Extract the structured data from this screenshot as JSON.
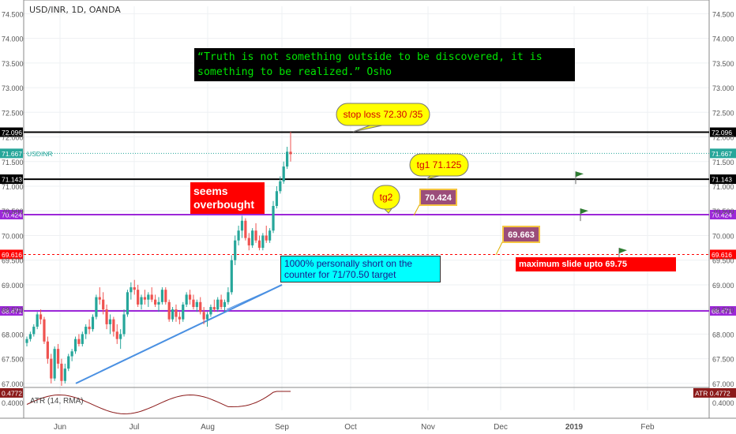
{
  "header": {
    "title": "USD/INR, 1D, OANDA"
  },
  "quote": {
    "text": "“Truth is not something outside to be discovered, it is\nsomething to be realized.” Osho"
  },
  "annotations": {
    "overbought": "seems\noverbought",
    "short_note": "1000% personally short on the counter for 71/70.50 target",
    "max_slide": "maximum slide upto 69.75",
    "stop_loss": "stop loss 72.30 /35",
    "tg1": "tg1 71.125",
    "tg2": "tg2",
    "target_70424": "70.424",
    "target_69663": "69.663"
  },
  "series_label": "USDINR",
  "atr": {
    "label": "ATR (14, RMA)",
    "right_label": "ATR",
    "value": "0.4772",
    "tick": "0.4000"
  },
  "chart_data": {
    "type": "candlestick",
    "symbol": "USD/INR",
    "interval": "1D",
    "ylim": [
      66.95,
      74.65
    ],
    "y_ticks": [
      "67.000",
      "67.500",
      "68.000",
      "68.500",
      "69.000",
      "69.500",
      "70.000",
      "70.500",
      "71.000",
      "71.500",
      "72.000",
      "72.500",
      "73.000",
      "73.500",
      "74.000",
      "74.500"
    ],
    "x_ticks": [
      "Jun",
      "Jul",
      "Aug",
      "Sep",
      "Oct",
      "Nov",
      "Dec",
      "2019",
      "Feb"
    ],
    "price_lines": [
      {
        "label": "72.096",
        "value": 72.096,
        "style": "solid",
        "color": "#000000"
      },
      {
        "label": "71.667",
        "value": 71.667,
        "style": "dotted",
        "color": "#26a69a"
      },
      {
        "label": "71.143",
        "value": 71.143,
        "style": "solid",
        "color": "#000000"
      },
      {
        "label": "70.424",
        "value": 70.424,
        "style": "solid",
        "color": "#9c27d8"
      },
      {
        "label": "69.616",
        "value": 69.616,
        "style": "dashed",
        "color": "#ff0000"
      },
      {
        "label": "68.471",
        "value": 68.471,
        "style": "solid",
        "color": "#9c27d8"
      }
    ],
    "candles": [
      [
        67.82,
        67.95,
        67.75,
        67.9
      ],
      [
        67.9,
        68.05,
        67.85,
        68.0
      ],
      [
        68.0,
        68.2,
        67.95,
        68.15
      ],
      [
        68.15,
        68.45,
        68.1,
        68.4
      ],
      [
        68.4,
        68.5,
        68.2,
        68.3
      ],
      [
        68.3,
        68.35,
        67.8,
        67.85
      ],
      [
        67.85,
        67.95,
        67.4,
        67.5
      ],
      [
        67.5,
        67.6,
        67.0,
        67.1
      ],
      [
        67.1,
        67.75,
        67.05,
        67.7
      ],
      [
        67.7,
        67.8,
        67.3,
        67.4
      ],
      [
        67.4,
        67.5,
        66.95,
        67.05
      ],
      [
        67.05,
        67.4,
        67.0,
        67.3
      ],
      [
        67.3,
        67.6,
        67.25,
        67.55
      ],
      [
        67.55,
        67.7,
        67.45,
        67.65
      ],
      [
        67.65,
        67.95,
        67.6,
        67.9
      ],
      [
        67.9,
        68.0,
        67.75,
        67.8
      ],
      [
        67.8,
        68.05,
        67.75,
        68.0
      ],
      [
        68.0,
        68.2,
        67.9,
        68.15
      ],
      [
        68.15,
        68.3,
        68.0,
        68.1
      ],
      [
        68.1,
        68.4,
        68.05,
        68.35
      ],
      [
        68.35,
        68.8,
        68.3,
        68.75
      ],
      [
        68.75,
        68.95,
        68.6,
        68.7
      ],
      [
        68.7,
        68.85,
        68.4,
        68.5
      ],
      [
        68.5,
        68.6,
        68.1,
        68.2
      ],
      [
        68.2,
        68.4,
        68.0,
        68.3
      ],
      [
        68.3,
        68.35,
        67.95,
        68.05
      ],
      [
        68.05,
        68.2,
        67.8,
        67.9
      ],
      [
        67.9,
        68.1,
        67.7,
        68.0
      ],
      [
        68.0,
        68.5,
        67.95,
        68.4
      ],
      [
        68.4,
        68.9,
        68.35,
        68.85
      ],
      [
        68.85,
        69.05,
        68.7,
        68.95
      ],
      [
        68.95,
        69.1,
        68.8,
        68.9
      ],
      [
        68.9,
        69.0,
        68.55,
        68.6
      ],
      [
        68.6,
        68.8,
        68.5,
        68.75
      ],
      [
        68.75,
        68.9,
        68.6,
        68.7
      ],
      [
        68.7,
        68.85,
        68.55,
        68.8
      ],
      [
        68.8,
        68.95,
        68.65,
        68.7
      ],
      [
        68.7,
        68.8,
        68.55,
        68.6
      ],
      [
        68.6,
        68.75,
        68.45,
        68.65
      ],
      [
        68.65,
        68.95,
        68.6,
        68.9
      ],
      [
        68.9,
        68.95,
        68.6,
        68.65
      ],
      [
        68.65,
        68.7,
        68.25,
        68.3
      ],
      [
        68.3,
        68.55,
        68.25,
        68.5
      ],
      [
        68.5,
        68.6,
        68.25,
        68.35
      ],
      [
        68.35,
        68.45,
        68.2,
        68.3
      ],
      [
        68.3,
        68.65,
        68.25,
        68.6
      ],
      [
        68.6,
        68.85,
        68.55,
        68.8
      ],
      [
        68.8,
        68.9,
        68.6,
        68.7
      ],
      [
        68.7,
        68.8,
        68.5,
        68.55
      ],
      [
        68.55,
        68.7,
        68.45,
        68.65
      ],
      [
        68.65,
        68.75,
        68.4,
        68.45
      ],
      [
        68.45,
        68.55,
        68.2,
        68.3
      ],
      [
        68.3,
        68.45,
        68.15,
        68.4
      ],
      [
        68.4,
        68.6,
        68.35,
        68.55
      ],
      [
        68.55,
        68.7,
        68.45,
        68.5
      ],
      [
        68.5,
        68.75,
        68.45,
        68.7
      ],
      [
        68.7,
        68.8,
        68.5,
        68.55
      ],
      [
        68.55,
        68.7,
        68.45,
        68.65
      ],
      [
        68.65,
        68.95,
        68.6,
        68.85
      ],
      [
        68.85,
        69.6,
        68.8,
        69.5
      ],
      [
        69.5,
        70.0,
        69.4,
        69.9
      ],
      [
        69.9,
        70.2,
        69.8,
        70.1
      ],
      [
        70.1,
        70.4,
        69.95,
        70.3
      ],
      [
        70.3,
        70.35,
        69.9,
        69.95
      ],
      [
        69.95,
        70.05,
        69.7,
        69.8
      ],
      [
        69.8,
        70.15,
        69.75,
        70.1
      ],
      [
        70.1,
        70.25,
        69.85,
        69.9
      ],
      [
        69.9,
        70.0,
        69.7,
        69.75
      ],
      [
        69.75,
        70.05,
        69.7,
        70.0
      ],
      [
        70.0,
        70.2,
        69.85,
        69.9
      ],
      [
        69.9,
        70.15,
        69.85,
        70.1
      ],
      [
        70.1,
        70.7,
        70.05,
        70.6
      ],
      [
        70.6,
        71.0,
        70.55,
        70.9
      ],
      [
        70.9,
        71.2,
        70.85,
        71.1
      ],
      [
        71.1,
        71.5,
        71.05,
        71.4
      ],
      [
        71.4,
        71.8,
        71.35,
        71.7
      ],
      [
        71.7,
        72.1,
        71.5,
        71.65
      ]
    ]
  },
  "colors": {
    "up": "#26a69a",
    "down": "#ef5350",
    "trend": "#4a90e2",
    "atr": "#8b1a1a",
    "purple_label": "#9c27d8",
    "red_label": "#ff0000"
  }
}
